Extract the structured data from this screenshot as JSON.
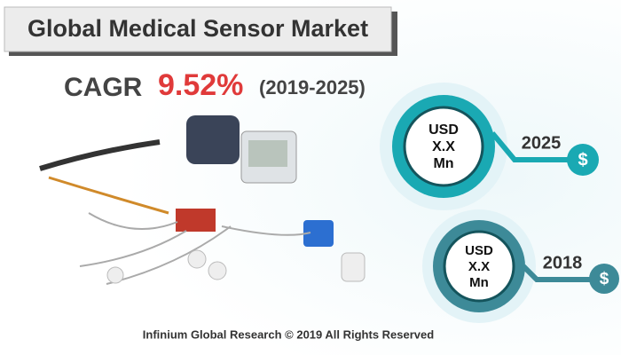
{
  "header": {
    "title": "Global Medical Sensor Market"
  },
  "cagr": {
    "label": "CAGR",
    "value": "9.52%",
    "period": "(2019-2025)"
  },
  "forecast": {
    "unit_line1": "USD",
    "unit_line2": "X.X",
    "unit_line3": "Mn",
    "year": "2025",
    "currency": "$"
  },
  "base": {
    "unit_line1": "USD",
    "unit_line2": "X.X",
    "unit_line3": "Mn",
    "year": "2018",
    "currency": "$"
  },
  "footer": {
    "copyright": "Infinium Global Research © 2019 All Rights Reserved"
  }
}
